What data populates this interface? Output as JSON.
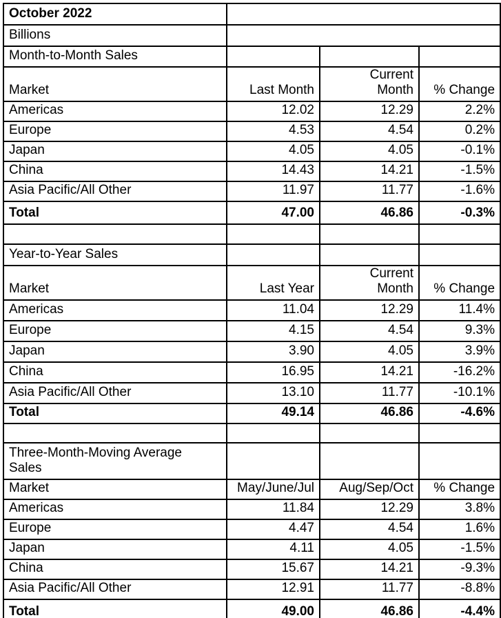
{
  "report": {
    "month": "October 2022",
    "units": "Billions",
    "sections": [
      {
        "title": "Month-to-Month Sales",
        "columns": [
          "Market",
          "Last Month",
          "Current\nMonth",
          "% Change"
        ],
        "rows": [
          [
            "Americas",
            "12.02",
            "12.29",
            "2.2%"
          ],
          [
            "Europe",
            "4.53",
            "4.54",
            "0.2%"
          ],
          [
            "Japan",
            "4.05",
            "4.05",
            "-0.1%"
          ],
          [
            "China",
            "14.43",
            "14.21",
            "-1.5%"
          ],
          [
            "Asia Pacific/All Other",
            "11.97",
            "11.77",
            "-1.6%"
          ]
        ],
        "total": [
          "Total",
          "47.00",
          "46.86",
          "-0.3%"
        ]
      },
      {
        "title": "Year-to-Year Sales",
        "columns": [
          "Market",
          "Last Year",
          "Current\nMonth",
          "% Change"
        ],
        "rows": [
          [
            "Americas",
            "11.04",
            "12.29",
            "11.4%"
          ],
          [
            "Europe",
            "4.15",
            "4.54",
            "9.3%"
          ],
          [
            "Japan",
            "3.90",
            "4.05",
            "3.9%"
          ],
          [
            "China",
            "16.95",
            "14.21",
            "-16.2%"
          ],
          [
            "Asia Pacific/All Other",
            "13.10",
            "11.77",
            "-10.1%"
          ]
        ],
        "total": [
          "Total",
          "49.14",
          "46.86",
          "-4.6%"
        ]
      },
      {
        "title": "Three-Month-Moving Average\nSales",
        "columns": [
          "Market",
          "May/June/Jul",
          "Aug/Sep/Oct",
          "% Change"
        ],
        "rows": [
          [
            "Americas",
            "11.84",
            "12.29",
            "3.8%"
          ],
          [
            "Europe",
            "4.47",
            "4.54",
            "1.6%"
          ],
          [
            "Japan",
            "4.11",
            "4.05",
            "-1.5%"
          ],
          [
            "China",
            "15.67",
            "14.21",
            "-9.3%"
          ],
          [
            "Asia Pacific/All Other",
            "12.91",
            "11.77",
            "-8.8%"
          ]
        ],
        "total": [
          "Total",
          "49.00",
          "46.86",
          "-4.4%"
        ]
      }
    ]
  },
  "colors": {
    "background": "#ffffff",
    "text": "#000000",
    "border": "#000000"
  }
}
